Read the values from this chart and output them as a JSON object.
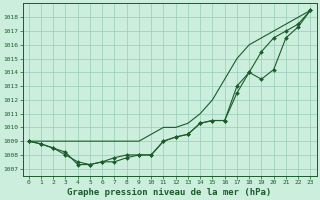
{
  "background_color": "#cceedd",
  "grid_color": "#99ccbb",
  "line_color": "#1a5c2a",
  "title": "Graphe pression niveau de la mer (hPa)",
  "title_fontsize": 6.5,
  "xlim": [
    -0.5,
    23.5
  ],
  "ylim": [
    1006.5,
    1019.0
  ],
  "yticks": [
    1007,
    1008,
    1009,
    1010,
    1011,
    1012,
    1013,
    1014,
    1015,
    1016,
    1017,
    1018
  ],
  "xticks": [
    0,
    1,
    2,
    3,
    4,
    5,
    6,
    7,
    8,
    9,
    10,
    11,
    12,
    13,
    14,
    15,
    16,
    17,
    18,
    19,
    20,
    21,
    22,
    23
  ],
  "series1_x": [
    0,
    1,
    2,
    3,
    4,
    5,
    6,
    7,
    8,
    9,
    10,
    11,
    12,
    13,
    14,
    15,
    16,
    17,
    18,
    19,
    20,
    21,
    22,
    23
  ],
  "series1_y": [
    1009.0,
    1009.0,
    1009.0,
    1009.0,
    1009.0,
    1009.0,
    1009.0,
    1009.0,
    1009.0,
    1009.0,
    1009.5,
    1010.0,
    1010.0,
    1010.3,
    1011.0,
    1012.0,
    1013.5,
    1015.0,
    1016.0,
    1016.5,
    1017.0,
    1017.5,
    1018.0,
    1018.5
  ],
  "series2_x": [
    0,
    1,
    2,
    3,
    4,
    5,
    6,
    7,
    8,
    9,
    10,
    11,
    12,
    13,
    14,
    15,
    16,
    17,
    18,
    19,
    20,
    21,
    22,
    23
  ],
  "series2_y": [
    1009.0,
    1008.8,
    1008.5,
    1008.2,
    1007.3,
    1007.3,
    1007.5,
    1007.5,
    1007.8,
    1008.0,
    1008.0,
    1009.0,
    1009.3,
    1009.5,
    1010.3,
    1010.5,
    1010.5,
    1013.0,
    1014.0,
    1013.5,
    1014.2,
    1016.5,
    1017.3,
    1018.5
  ],
  "series3_x": [
    0,
    1,
    2,
    3,
    4,
    5,
    6,
    7,
    8,
    9,
    10,
    11,
    12,
    13,
    14,
    15,
    16,
    17,
    18,
    19,
    20,
    21,
    22,
    23
  ],
  "series3_y": [
    1009.0,
    1008.8,
    1008.5,
    1008.0,
    1007.5,
    1007.3,
    1007.5,
    1007.8,
    1008.0,
    1008.0,
    1008.0,
    1009.0,
    1009.3,
    1009.5,
    1010.3,
    1010.5,
    1010.5,
    1012.5,
    1014.0,
    1015.5,
    1016.5,
    1017.0,
    1017.5,
    1018.5
  ]
}
